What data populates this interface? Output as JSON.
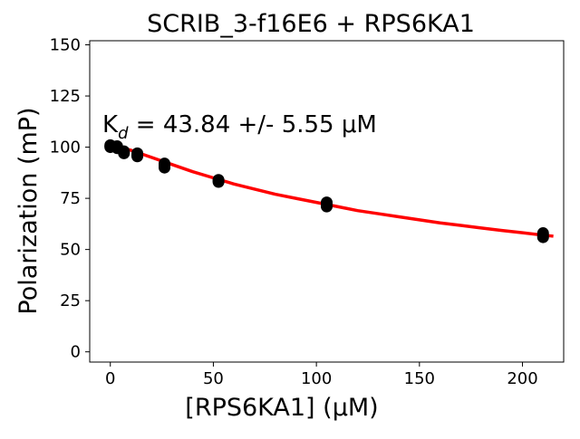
{
  "chart_data": {
    "type": "scatter",
    "title": "SCRIB_3-f16E6 + RPS6KA1",
    "xlabel": "[RPS6KA1] (μM)",
    "ylabel": "Polarization (mP)",
    "annotation": {
      "prefix": "K",
      "subscript": "d",
      "text": " = 43.84 +/- 5.55 μM"
    },
    "xlim": [
      -10,
      220
    ],
    "ylim": [
      -5,
      152
    ],
    "xticks": [
      0,
      50,
      100,
      150,
      200
    ],
    "yticks": [
      0,
      25,
      50,
      75,
      100,
      125,
      150
    ],
    "grid": false,
    "points": {
      "color": "#000000",
      "x": [
        0,
        0,
        0,
        3.3,
        3.3,
        3.3,
        6.6,
        6.6,
        6.6,
        13.1,
        13.1,
        13.1,
        26.3,
        26.3,
        26.3,
        52.5,
        52.5,
        52.5,
        105,
        105,
        105,
        210,
        210,
        210
      ],
      "y": [
        101,
        100.5,
        100,
        100.5,
        100,
        99.5,
        98,
        97.5,
        97,
        97,
        96,
        95.5,
        92,
        91,
        90,
        84,
        83.5,
        83,
        73,
        72,
        71,
        58,
        57,
        56
      ]
    },
    "fit": {
      "color": "#ff0000",
      "x": [
        0,
        10,
        20,
        30,
        40,
        50,
        60,
        70,
        80,
        90,
        100,
        110,
        120,
        130,
        140,
        150,
        160,
        170,
        180,
        190,
        200,
        210,
        215
      ],
      "y": [
        101,
        98.5,
        95,
        91.5,
        88,
        85,
        82,
        79.5,
        77,
        75,
        73,
        71,
        69,
        67.5,
        66,
        64.5,
        63,
        61.8,
        60.5,
        59.3,
        58.2,
        57,
        56.5
      ]
    }
  }
}
